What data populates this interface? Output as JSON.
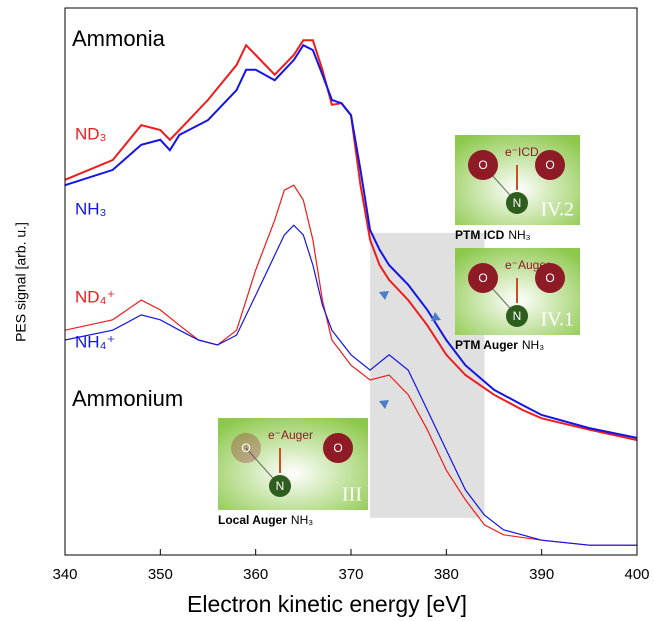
{
  "chart_data": {
    "type": "line",
    "xlabel": "Electron kinetic energy [eV]",
    "ylabel": "PES signal [arb. u.]",
    "xlim": [
      340,
      400
    ],
    "ylim": [
      0,
      100
    ],
    "xticks": [
      340,
      350,
      360,
      370,
      380,
      390,
      400
    ],
    "annotations": [
      "Ammonia",
      "Ammonium"
    ],
    "highlight": {
      "x": [
        372,
        384
      ],
      "y": [
        6.8,
        58.9
      ],
      "color": "#e0e0e0"
    },
    "series": [
      {
        "name": "ND₃",
        "color": "#ee1c1c",
        "x": [
          340,
          345,
          348,
          350,
          351,
          352,
          355,
          358,
          359,
          360,
          362,
          364,
          365,
          366,
          367,
          368,
          369,
          370,
          371,
          372,
          373,
          374,
          376,
          378,
          380,
          382,
          385,
          388,
          390,
          395,
          400
        ],
        "values": [
          68.6,
          72.2,
          78.6,
          77.7,
          75.9,
          77.7,
          83.2,
          89.6,
          93.2,
          91.4,
          87.8,
          91.4,
          94.1,
          94.1,
          88.7,
          82.3,
          82.6,
          80.4,
          67.6,
          57.6,
          53.0,
          50.3,
          46.6,
          42.0,
          36.6,
          32.9,
          29.3,
          26.5,
          25.0,
          22.9,
          21.0
        ]
      },
      {
        "name": "NH₃",
        "color": "#1414e6",
        "x": [
          340,
          345,
          348,
          350,
          351,
          352,
          355,
          358,
          359,
          360,
          362,
          364,
          365,
          366,
          367,
          368,
          369,
          370,
          371,
          372,
          373,
          374,
          376,
          378,
          380,
          382,
          385,
          388,
          390,
          395,
          400
        ],
        "values": [
          67.6,
          70.4,
          75.0,
          75.9,
          74.0,
          76.8,
          79.5,
          85.0,
          88.7,
          88.7,
          86.8,
          90.5,
          93.2,
          92.3,
          87.8,
          83.2,
          82.6,
          80.4,
          70.4,
          59.4,
          55.8,
          53.0,
          49.4,
          44.8,
          39.3,
          34.7,
          30.2,
          27.4,
          25.6,
          23.2,
          21.4
        ]
      },
      {
        "name": "ND₄⁺",
        "color": "#ee1c1c",
        "x": [
          340,
          345,
          348,
          350,
          352,
          354,
          356,
          358,
          360,
          362,
          363,
          364,
          365,
          366,
          367,
          368,
          370,
          372,
          374,
          376,
          378,
          380,
          382,
          384,
          386,
          390,
          395,
          400
        ],
        "values": [
          41.1,
          43.0,
          46.6,
          44.8,
          42.0,
          39.3,
          38.4,
          41.1,
          52.1,
          61.2,
          66.7,
          67.6,
          64.9,
          57.6,
          46.6,
          39.3,
          34.7,
          32.0,
          32.9,
          29.3,
          22.9,
          15.5,
          10.1,
          5.5,
          3.7,
          2.7,
          1.8,
          1.8
        ]
      },
      {
        "name": "NH₄⁺",
        "color": "#1414e6",
        "x": [
          340,
          345,
          348,
          350,
          352,
          354,
          356,
          358,
          360,
          362,
          363,
          364,
          365,
          366,
          367,
          368,
          370,
          372,
          374,
          376,
          378,
          380,
          382,
          384,
          386,
          390,
          395,
          400
        ],
        "values": [
          39.3,
          41.1,
          43.9,
          43.0,
          41.1,
          39.3,
          38.4,
          40.2,
          47.5,
          54.8,
          58.5,
          60.3,
          58.5,
          53.0,
          45.7,
          41.1,
          36.6,
          33.8,
          36.6,
          33.8,
          26.5,
          19.2,
          11.9,
          7.3,
          4.6,
          2.7,
          1.8,
          1.8
        ]
      }
    ],
    "insets": [
      {
        "numeral": "IV.2",
        "caption": "PTM ICD",
        "molecule": "NH₃",
        "electron": "e⁻ICD",
        "atoms": [
          "O",
          "N",
          "O"
        ]
      },
      {
        "numeral": "IV.1",
        "caption": "PTM Auger",
        "molecule": "NH₃",
        "electron": "e⁻Auger",
        "atoms": [
          "O",
          "N",
          "O"
        ]
      },
      {
        "numeral": "III",
        "caption": "Local Auger",
        "molecule": "NH₃",
        "electron": "e⁻Auger",
        "atoms": [
          "O",
          "N",
          "O"
        ]
      }
    ]
  }
}
